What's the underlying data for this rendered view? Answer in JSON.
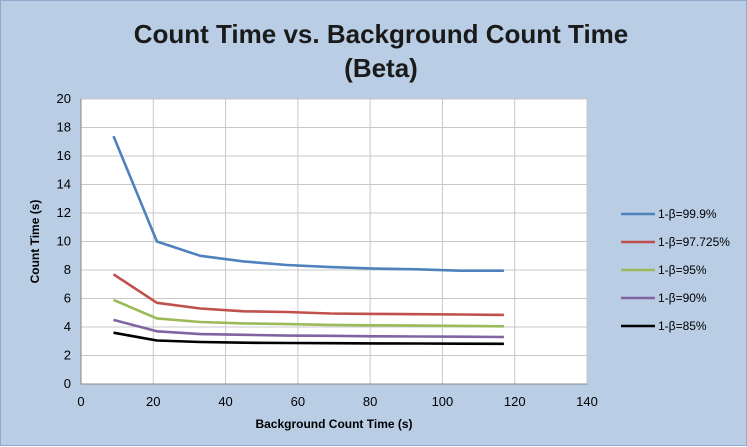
{
  "chart_data": {
    "type": "line",
    "title": "Count Time vs. Background Count Time",
    "subtitle": "(Beta)",
    "xlabel": "Background Count Time (s)",
    "ylabel": "Count Time (s)",
    "xlim": [
      0,
      140
    ],
    "ylim": [
      0,
      20
    ],
    "xticks": [
      0,
      20,
      40,
      60,
      80,
      100,
      120,
      140
    ],
    "yticks": [
      0,
      2,
      4,
      6,
      8,
      10,
      12,
      14,
      16,
      18,
      20
    ],
    "grid": true,
    "legend_position": "right",
    "x": [
      9,
      21,
      33,
      45,
      57,
      69,
      81,
      93,
      105,
      117
    ],
    "series": [
      {
        "name": "1-β=99.9%",
        "color": "#4f81bd",
        "values": [
          17.4,
          10.0,
          9.0,
          8.6,
          8.35,
          8.2,
          8.1,
          8.05,
          7.95,
          7.95
        ]
      },
      {
        "name": "1-β=97.725%",
        "color": "#c0504d",
        "values": [
          7.7,
          5.7,
          5.3,
          5.1,
          5.05,
          4.95,
          4.92,
          4.9,
          4.88,
          4.85
        ]
      },
      {
        "name": "1-β=95%",
        "color": "#9bbb59",
        "values": [
          5.9,
          4.6,
          4.35,
          4.25,
          4.2,
          4.15,
          4.12,
          4.1,
          4.08,
          4.05
        ]
      },
      {
        "name": "1-β=90%",
        "color": "#8064a2",
        "values": [
          4.5,
          3.7,
          3.5,
          3.45,
          3.4,
          3.38,
          3.35,
          3.33,
          3.32,
          3.3
        ]
      },
      {
        "name": "1-β=85%",
        "color": "#000000",
        "values": [
          3.6,
          3.05,
          2.95,
          2.9,
          2.88,
          2.86,
          2.85,
          2.84,
          2.83,
          2.82
        ]
      }
    ]
  }
}
